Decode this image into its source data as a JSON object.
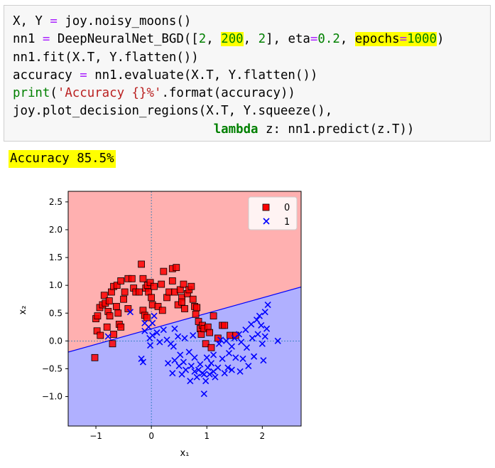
{
  "code": {
    "line1": {
      "p1": "X, Y ",
      "eq": "=",
      "p2": " joy.noisy_moons()"
    },
    "line2": {
      "p1": "nn1 ",
      "eq1": "=",
      "p2": " DeepNeuralNet_BGD([",
      "n1": "2",
      "c1": ", ",
      "n2": "200",
      "c2": ", ",
      "n3": "2",
      "p3": "], eta",
      "eq2": "=",
      "n4": "0.2",
      "c3": ", ",
      "hl_key": "epochs",
      "eq3": "=",
      "n5": "1000",
      "p4": ")"
    },
    "line3": "nn1.fit(X.T, Y.flatten())",
    "line4": {
      "p1": "accuracy ",
      "eq": "=",
      "p2": " nn1.evaluate(X.T, Y.flatten())"
    },
    "line5": {
      "kw": "print",
      "p1": "(",
      "str": "'Accuracy {}%'",
      "p2": ".format(accuracy))"
    },
    "line6": "joy.plot_decision_regions(X.T, Y.squeeze(),",
    "line7": {
      "indent": "                           ",
      "kw": "lambda",
      "p1": " z: nn1.predict(z.T))"
    }
  },
  "output_text": "Accuracy 85.5%",
  "colors": {
    "region0": "#ffb0b0",
    "region1": "#b0b0ff",
    "class0": "#ff0000",
    "class1": "#0000ff"
  },
  "chart_data": {
    "type": "scatter",
    "xlabel": "x₁",
    "ylabel": "x₂",
    "xlim": [
      -1.5,
      2.7
    ],
    "ylim": [
      -1.53,
      2.69
    ],
    "xticks": [
      -1,
      0,
      1,
      2
    ],
    "yticks": [
      -1.0,
      -0.5,
      0.0,
      0.5,
      1.0,
      1.5,
      2.0,
      2.5
    ],
    "xtick_labels": [
      "−1",
      "0",
      "1",
      "2"
    ],
    "ytick_labels": [
      "−1.0",
      "−0.5",
      "0.0",
      "0.5",
      "1.0",
      "1.5",
      "2.0",
      "2.5"
    ],
    "legend": {
      "position": "top-right",
      "entries": [
        "0",
        "1"
      ]
    },
    "decision_boundary": [
      [
        -1.5,
        -0.2
      ],
      [
        2.7,
        0.97
      ]
    ],
    "series": [
      {
        "name": "0",
        "marker": "square",
        "points": [
          [
            -1.02,
            -0.3
          ],
          [
            -0.98,
            0.18
          ],
          [
            -1.0,
            0.4
          ],
          [
            -0.97,
            0.45
          ],
          [
            -0.92,
            0.1
          ],
          [
            -0.93,
            0.6
          ],
          [
            -0.88,
            0.65
          ],
          [
            -0.83,
            0.68
          ],
          [
            -0.85,
            0.82
          ],
          [
            -0.8,
            0.25
          ],
          [
            -0.78,
            0.53
          ],
          [
            -0.76,
            0.72
          ],
          [
            -0.72,
            0.88
          ],
          [
            -0.7,
            -0.05
          ],
          [
            -0.68,
            0.98
          ],
          [
            -0.68,
            0.12
          ],
          [
            -0.63,
            0.62
          ],
          [
            -0.62,
            1.0
          ],
          [
            -0.6,
            0.5
          ],
          [
            -0.58,
            0.3
          ],
          [
            -0.55,
            1.08
          ],
          [
            -0.55,
            0.25
          ],
          [
            -0.5,
            0.75
          ],
          [
            -0.48,
            0.88
          ],
          [
            -0.42,
            1.12
          ],
          [
            -0.42,
            0.58
          ],
          [
            -0.35,
            1.12
          ],
          [
            -0.32,
            0.95
          ],
          [
            -0.28,
            0.88
          ],
          [
            -0.22,
            0.88
          ],
          [
            -0.18,
            1.38
          ],
          [
            -0.15,
            1.12
          ],
          [
            -0.15,
            0.55
          ],
          [
            -0.1,
            0.95
          ],
          [
            -0.05,
            0.88
          ],
          [
            -0.07,
            1.0
          ],
          [
            -0.02,
            1.05
          ],
          [
            0.0,
            0.78
          ],
          [
            -0.12,
            0.46
          ],
          [
            -0.08,
            0.42
          ],
          [
            0.02,
            0.65
          ],
          [
            0.05,
            0.98
          ],
          [
            0.12,
            0.62
          ],
          [
            0.18,
            1.02
          ],
          [
            0.22,
            1.25
          ],
          [
            0.28,
            0.78
          ],
          [
            0.32,
            0.88
          ],
          [
            0.38,
            1.08
          ],
          [
            0.42,
            0.88
          ],
          [
            0.38,
            1.3
          ],
          [
            0.45,
            1.32
          ],
          [
            0.48,
            0.65
          ],
          [
            0.52,
            0.92
          ],
          [
            0.55,
            0.78
          ],
          [
            0.58,
            1.02
          ],
          [
            0.6,
            0.58
          ],
          [
            0.65,
            0.85
          ],
          [
            0.68,
            0.92
          ],
          [
            0.72,
            0.98
          ],
          [
            0.75,
            0.75
          ],
          [
            0.78,
            0.62
          ],
          [
            0.8,
            0.48
          ],
          [
            0.82,
            0.6
          ],
          [
            0.85,
            0.35
          ],
          [
            0.88,
            0.22
          ],
          [
            0.9,
            0.12
          ],
          [
            0.92,
            0.28
          ],
          [
            0.95,
            0.22
          ],
          [
            0.98,
            -0.05
          ],
          [
            1.02,
            0.25
          ],
          [
            1.05,
            0.15
          ],
          [
            1.08,
            -0.12
          ],
          [
            1.12,
            0.45
          ],
          [
            1.2,
            0.05
          ],
          [
            1.28,
            0.28
          ],
          [
            1.32,
            0.28
          ],
          [
            1.42,
            0.1
          ],
          [
            1.52,
            0.1
          ],
          [
            0.2,
            0.55
          ],
          [
            0.55,
            0.7
          ],
          [
            -0.75,
            0.45
          ]
        ]
      },
      {
        "name": "1",
        "marker": "x",
        "points": [
          [
            -0.78,
            0.08
          ],
          [
            -0.38,
            0.52
          ],
          [
            -0.15,
            -0.38
          ],
          [
            -0.18,
            -0.32
          ],
          [
            -0.12,
            0.32
          ],
          [
            -0.12,
            0.18
          ],
          [
            -0.05,
            0.25
          ],
          [
            -0.03,
            0.05
          ],
          [
            -0.02,
            -0.08
          ],
          [
            0.02,
            0.1
          ],
          [
            0.02,
            0.32
          ],
          [
            0.05,
            0.45
          ],
          [
            0.1,
            0.15
          ],
          [
            0.15,
            -0.02
          ],
          [
            0.22,
            0.2
          ],
          [
            0.28,
            0.02
          ],
          [
            0.35,
            -0.05
          ],
          [
            0.4,
            -0.1
          ],
          [
            0.42,
            0.22
          ],
          [
            0.48,
            0.08
          ],
          [
            0.52,
            -0.25
          ],
          [
            0.3,
            -0.4
          ],
          [
            0.38,
            -0.58
          ],
          [
            0.42,
            -0.35
          ],
          [
            0.5,
            -0.45
          ],
          [
            0.55,
            -0.6
          ],
          [
            0.58,
            -0.38
          ],
          [
            0.62,
            -0.52
          ],
          [
            0.68,
            -0.2
          ],
          [
            0.7,
            -0.72
          ],
          [
            0.72,
            -0.45
          ],
          [
            0.78,
            -0.55
          ],
          [
            0.78,
            -0.3
          ],
          [
            0.82,
            -0.65
          ],
          [
            0.85,
            -0.52
          ],
          [
            0.88,
            -0.42
          ],
          [
            0.92,
            -0.58
          ],
          [
            0.95,
            -0.95
          ],
          [
            0.95,
            -0.6
          ],
          [
            0.98,
            -0.72
          ],
          [
            1.02,
            -0.48
          ],
          [
            1.05,
            -0.6
          ],
          [
            1.08,
            -0.4
          ],
          [
            1.12,
            -0.55
          ],
          [
            1.12,
            -0.25
          ],
          [
            1.15,
            -0.65
          ],
          [
            1.2,
            -0.48
          ],
          [
            1.22,
            -0.05
          ],
          [
            1.25,
            0.02
          ],
          [
            1.28,
            -0.32
          ],
          [
            1.32,
            -0.58
          ],
          [
            1.38,
            -0.48
          ],
          [
            1.4,
            -0.22
          ],
          [
            1.45,
            -0.1
          ],
          [
            1.45,
            -0.52
          ],
          [
            1.5,
            0.05
          ],
          [
            1.52,
            -0.3
          ],
          [
            1.58,
            0.12
          ],
          [
            1.6,
            -0.55
          ],
          [
            1.62,
            -0.02
          ],
          [
            1.65,
            -0.32
          ],
          [
            1.7,
            0.2
          ],
          [
            1.72,
            -0.12
          ],
          [
            1.75,
            -0.45
          ],
          [
            1.8,
            0.3
          ],
          [
            1.82,
            0.05
          ],
          [
            1.85,
            -0.28
          ],
          [
            1.9,
            0.38
          ],
          [
            1.92,
            0.12
          ],
          [
            1.95,
            0.45
          ],
          [
            1.98,
            0.28
          ],
          [
            2.0,
            -0.05
          ],
          [
            2.05,
            0.52
          ],
          [
            2.08,
            0.22
          ],
          [
            2.1,
            0.65
          ],
          [
            2.02,
            -0.35
          ],
          [
            2.05,
            0.08
          ],
          [
            2.28,
            0.0
          ],
          [
            1.0,
            -0.3
          ],
          [
            0.75,
            0.1
          ],
          [
            0.6,
            0.05
          ],
          [
            1.35,
            0.0
          ]
        ]
      }
    ]
  }
}
